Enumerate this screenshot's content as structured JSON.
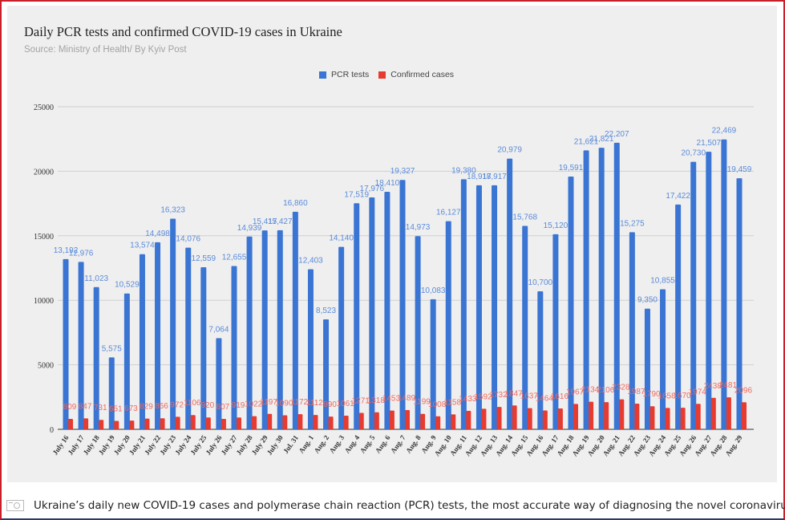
{
  "caption": {
    "icon": "camera-icon",
    "text": "Ukraine’s daily new COVID-19 cases and polymerase chain reaction (PCR) tests, the most accurate way of diagnosing the novel coronavirus,"
  },
  "colors": {
    "pcr": "#3a75d4",
    "cases": "#e53b30",
    "pcr_label": "#5b8bd9",
    "cases_label": "#ef6b61",
    "grid": "#cfcfcf",
    "border": "#c8202a"
  },
  "chart_data": {
    "type": "bar",
    "title": "Daily PCR tests and confirmed COVID-19 cases in Ukraine",
    "subtitle": "Source: Ministry of Health/ By Kyiv Post",
    "xlabel": "",
    "ylabel": "",
    "ylim": [
      0,
      25000
    ],
    "yticks": [
      0,
      5000,
      10000,
      15000,
      20000,
      25000
    ],
    "ytick_labels": [
      "0",
      "5000",
      "10000",
      "15000",
      "20000",
      "25000"
    ],
    "grid": true,
    "legend_position": "top-center",
    "categories": [
      "July 16",
      "July 17",
      "July 18",
      "July 19",
      "July 20",
      "July 21",
      "July 22",
      "July 23",
      "July 24",
      "July 25",
      "July 26",
      "July 27",
      "July 28",
      "July 29",
      "July 30",
      "Jul. 31",
      "Aug. 1",
      "Aug. 2",
      "Aug. 3",
      "Aug. 4",
      "Aug. 5",
      "Aug. 6",
      "Aug. 7",
      "Aug. 8",
      "Aug. 9",
      "Aug. 10",
      "Aug. 11",
      "Aug. 12",
      "Aug. 13",
      "Aug. 14",
      "Aug. 15",
      "Aug. 16",
      "Aug. 17",
      "Aug. 18",
      "Aug. 19",
      "Aug. 20",
      "Aug. 21",
      "Aug. 22",
      "Aug. 23",
      "Aug. 24",
      "Aug. 25",
      "Aug. 26",
      "Aug. 27",
      "Aug. 28",
      "Aug. 29"
    ],
    "series": [
      {
        "name": "PCR tests",
        "values": [
          13192,
          12976,
          11023,
          5575,
          10529,
          13574,
          14498,
          16323,
          14076,
          12559,
          7064,
          12655,
          14939,
          15417,
          15427,
          16860,
          12403,
          8523,
          14140,
          17519,
          17976,
          18410,
          19327,
          14973,
          10083,
          16127,
          19380,
          18917,
          18917,
          20979,
          15768,
          10700,
          15120,
          19591,
          21621,
          21821,
          22207,
          15275,
          9350,
          10855,
          17422,
          20730,
          21507,
          22469,
          19459
        ],
        "labels": [
          "13,192",
          "12,976",
          "11,023",
          "5,575",
          "10,529",
          "13,574",
          "14,498",
          "16,323",
          "14,076",
          "12,559",
          "7,064",
          "12,655",
          "14,939",
          "15,417",
          "15,427",
          "16,860",
          "12,403",
          "8,523",
          "14,140",
          "17,519",
          "17,976",
          "18,410",
          "19,327",
          "14,973",
          "10,083",
          "16,127",
          "19,380",
          "18,917",
          "18,917",
          "20,979",
          "15,768",
          "10,700",
          "15,120",
          "19,591",
          "21,621",
          "21,821",
          "22,207",
          "15,275",
          "9,350",
          "10,855",
          "17,422",
          "20,730",
          "21,507",
          "22,469",
          "19,459"
        ]
      },
      {
        "name": "Confirmed cases",
        "values": [
          809,
          847,
          731,
          651,
          673,
          829,
          856,
          972,
          1106,
          920,
          807,
          919,
          1022,
          1197,
          1090,
          1172,
          1112,
          990,
          1061,
          1271,
          1318,
          1453,
          1489,
          1199,
          1008,
          1158,
          1433,
          1592,
          1732,
          1847,
          1637,
          1464,
          1616,
          1967,
          2134,
          2106,
          2328,
          1987,
          1790,
          1658,
          1670,
          1974,
          2438,
          2481,
          2096
        ],
        "labels": [
          "809",
          "847",
          "731",
          "651",
          "673",
          "829",
          "856",
          "972",
          "1106",
          "920",
          "807",
          "919",
          "1022",
          "1197",
          "1090",
          "1172",
          "1112",
          "990",
          "1061",
          "1271",
          "1318",
          "1453",
          "1489",
          "1199",
          "1008",
          "1158",
          "1433",
          "1592",
          "1732",
          "1847",
          "1637",
          "1464",
          "1616",
          "1967",
          "2134",
          "2106",
          "2328",
          "1987",
          "1790",
          "1658",
          "1670",
          "1974",
          "2438",
          "2481",
          "2096"
        ]
      }
    ]
  }
}
